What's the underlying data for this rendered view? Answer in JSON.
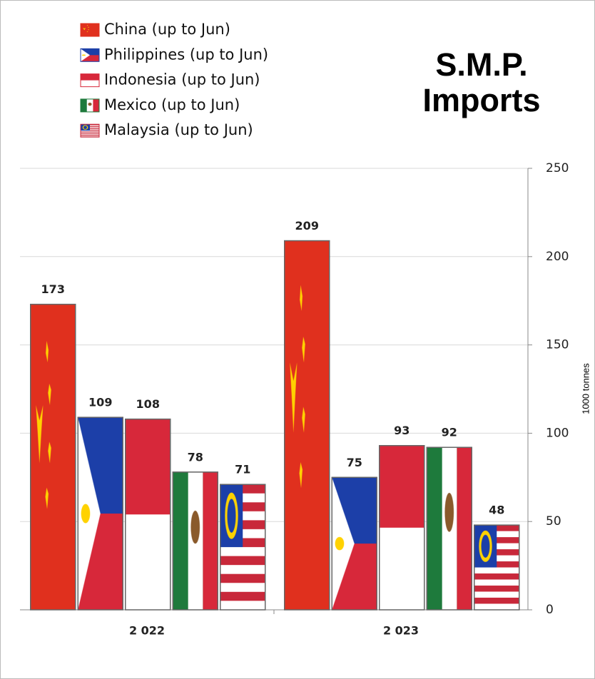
{
  "chart_data": {
    "type": "bar",
    "title": "S.M.P. Imports",
    "categories": [
      "2 022",
      "2 023"
    ],
    "series": [
      {
        "name": "China (up to Jun)",
        "color": "#e0301e",
        "values": [
          173,
          209
        ]
      },
      {
        "name": "Philippines (up to Jun)",
        "color": "#1c3fa8",
        "values": [
          109,
          75
        ]
      },
      {
        "name": "Indonesia (up to Jun)",
        "color": "#d7283a",
        "values": [
          108,
          93
        ]
      },
      {
        "name": "Mexico (up to Jun)",
        "color": "#1e7a3c",
        "values": [
          78,
          92
        ]
      },
      {
        "name": "Malaysia (up to Jun)",
        "color": "#c8283a",
        "values": [
          71,
          48
        ]
      }
    ],
    "y_axis_label": "1000 tonnes",
    "ylim": [
      0,
      250
    ],
    "yticks": [
      0,
      50,
      100,
      150,
      200,
      250
    ],
    "grid": true,
    "legend": "top-left"
  }
}
